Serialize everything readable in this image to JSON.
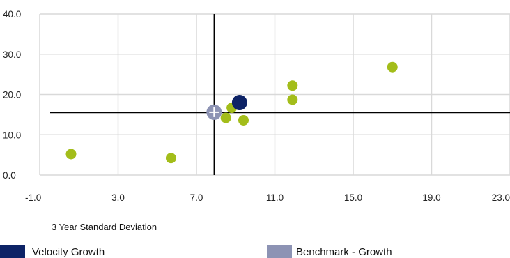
{
  "chart_data": {
    "type": "scatter",
    "xlabel": "3 Year Standard Deviation",
    "ylabel": "",
    "xlim": [
      -1.0,
      23.0
    ],
    "ylim": [
      0.0,
      40.0
    ],
    "x_ticks": [
      -1.0,
      3.0,
      7.0,
      11.0,
      15.0,
      19.0,
      23.0
    ],
    "y_ticks": [
      0.0,
      10.0,
      20.0,
      30.0,
      40.0
    ],
    "x_tick_labels": [
      "-1.0",
      "3.0",
      "7.0",
      "11.0",
      "15.0",
      "19.0",
      "23.0"
    ],
    "y_tick_labels": [
      "0.0",
      "10.0",
      "20.0",
      "30.0",
      "40.0"
    ],
    "grid": true,
    "reference_lines": {
      "x": 7.9,
      "y": 15.5
    },
    "series": [
      {
        "role": "peers",
        "color": "#a3bd1a",
        "points": [
          {
            "x": 0.6,
            "y": 5.2
          },
          {
            "x": 5.7,
            "y": 4.2
          },
          {
            "x": 8.5,
            "y": 14.2
          },
          {
            "x": 8.8,
            "y": 16.7
          },
          {
            "x": 9.4,
            "y": 13.6
          },
          {
            "x": 11.9,
            "y": 18.7
          },
          {
            "x": 11.9,
            "y": 22.2
          },
          {
            "x": 17.0,
            "y": 26.8
          }
        ]
      },
      {
        "name": "Velocity Growth",
        "role": "fund",
        "color": "#0d2366",
        "points": [
          {
            "x": 9.2,
            "y": 18.0
          }
        ]
      },
      {
        "name": "Benchmark - Growth",
        "role": "benchmark",
        "color": "#8d93b4",
        "points": [
          {
            "x": 7.9,
            "y": 15.6
          }
        ]
      }
    ],
    "legend_position": "bottom"
  }
}
